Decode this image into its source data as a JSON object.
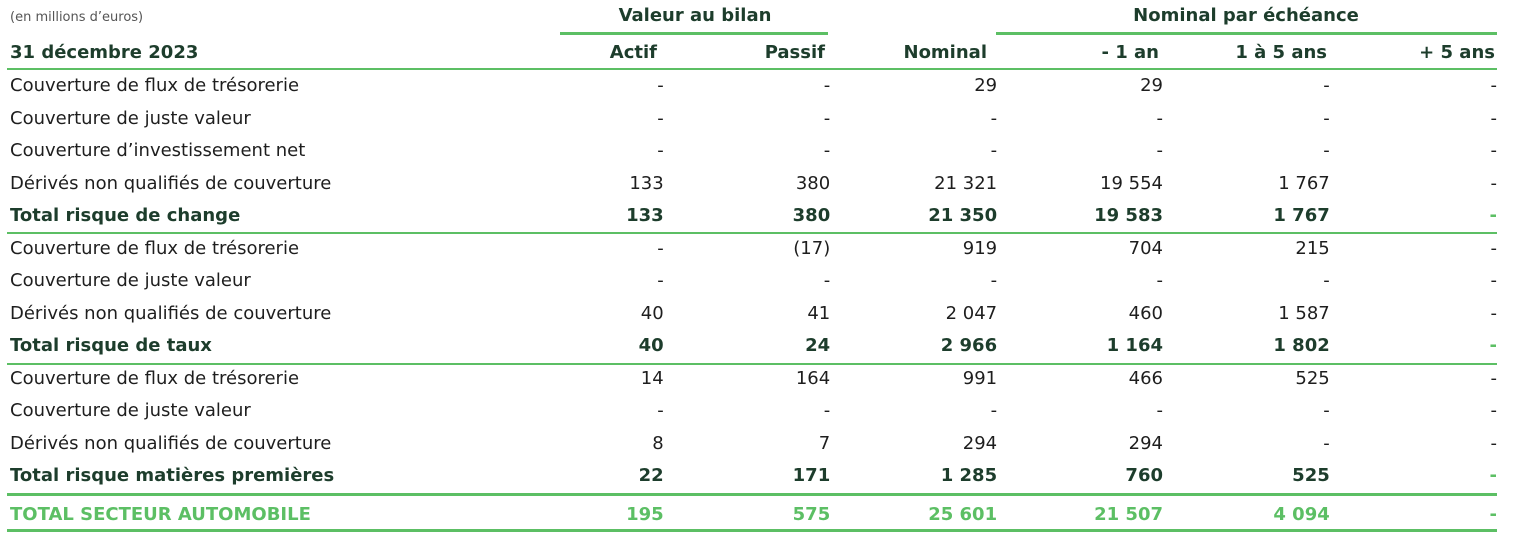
{
  "unit_label": "(en millions d’euros)",
  "group_headers": {
    "valeur_au_bilan": "Valeur au bilan",
    "nominal_par_echeance": "Nominal par échéance"
  },
  "columns": {
    "label": "31 décembre 2023",
    "actif": "Actif",
    "passif": "Passif",
    "nominal": "Nominal",
    "moins_1_an": "- 1 an",
    "un_a_5_ans": "1 à 5 ans",
    "plus_5_ans": "+ 5 ans"
  },
  "rows": [
    {
      "label": "Couverture de flux de trésorerie",
      "actif": "-",
      "passif": "-",
      "nominal": "29",
      "m1": "29",
      "m15": "-",
      "p5": "-"
    },
    {
      "label": "Couverture de juste valeur",
      "actif": "-",
      "passif": "-",
      "nominal": "-",
      "m1": "-",
      "m15": "-",
      "p5": "-"
    },
    {
      "label": "Couverture d’investissement net",
      "actif": "-",
      "passif": "-",
      "nominal": "-",
      "m1": "-",
      "m15": "-",
      "p5": "-"
    },
    {
      "label": "Dérivés non qualifiés de couverture",
      "actif": "133",
      "passif": "380",
      "nominal": "21 321",
      "m1": "19 554",
      "m15": "1 767",
      "p5": "-"
    },
    {
      "label": "Total risque de change",
      "actif": "133",
      "passif": "380",
      "nominal": "21 350",
      "m1": "19 583",
      "m15": "1 767",
      "p5": "-"
    },
    {
      "label": "Couverture de flux de trésorerie",
      "actif": "-",
      "passif": "(17)",
      "nominal": "919",
      "m1": "704",
      "m15": "215",
      "p5": "-"
    },
    {
      "label": "Couverture de juste valeur",
      "actif": "-",
      "passif": "-",
      "nominal": "-",
      "m1": "-",
      "m15": "-",
      "p5": "-"
    },
    {
      "label": "Dérivés non qualifiés de couverture",
      "actif": "40",
      "passif": "41",
      "nominal": "2 047",
      "m1": "460",
      "m15": "1 587",
      "p5": "-"
    },
    {
      "label": "Total risque de taux",
      "actif": "40",
      "passif": "24",
      "nominal": "2 966",
      "m1": "1 164",
      "m15": "1 802",
      "p5": "-"
    },
    {
      "label": "Couverture de flux de trésorerie",
      "actif": "14",
      "passif": "164",
      "nominal": "991",
      "m1": "466",
      "m15": "525",
      "p5": "-"
    },
    {
      "label": "Couverture de juste valeur",
      "actif": "-",
      "passif": "-",
      "nominal": "-",
      "m1": "-",
      "m15": "-",
      "p5": "-"
    },
    {
      "label": "Dérivés non qualifiés de couverture",
      "actif": "8",
      "passif": "7",
      "nominal": "294",
      "m1": "294",
      "m15": "-",
      "p5": "-"
    },
    {
      "label": "Total risque matières premières",
      "actif": "22",
      "passif": "171",
      "nominal": "1 285",
      "m1": "760",
      "m15": "525",
      "p5": "-"
    },
    {
      "label": "TOTAL SECTEUR AUTOMOBILE",
      "actif": "195",
      "passif": "575",
      "nominal": "25 601",
      "m1": "21 507",
      "m15": "4 094",
      "p5": "-"
    }
  ]
}
